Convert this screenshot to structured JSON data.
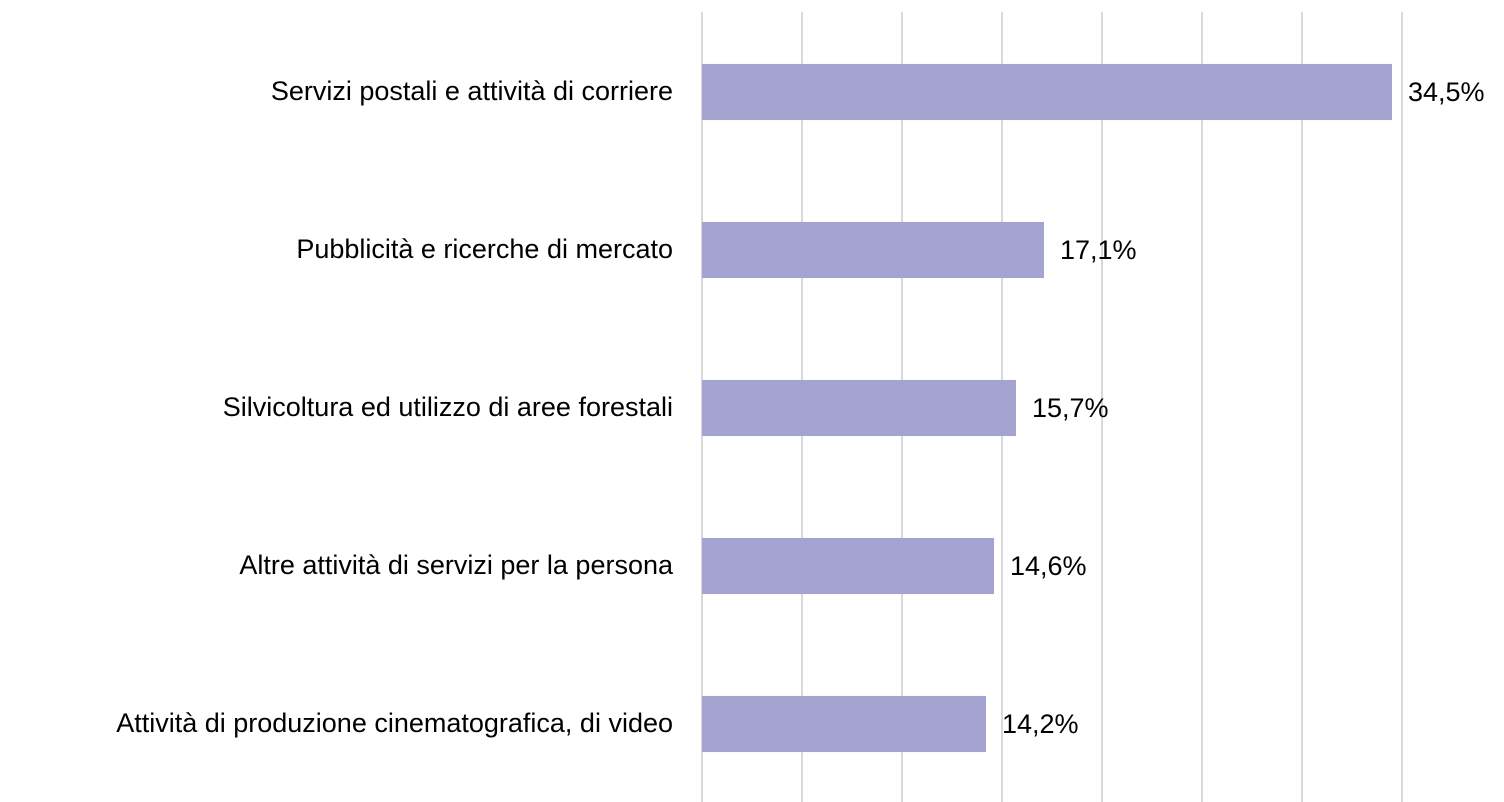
{
  "chart_data": {
    "type": "hbar",
    "categories": [
      "Servizi postali e attività di corriere",
      "Pubblicità e ricerche di mercato",
      "Silvicoltura ed utilizzo di aree forestali",
      "Altre attività di servizi per la persona",
      "Attività di produzione cinematografica, di video"
    ],
    "values": [
      34.5,
      17.1,
      15.7,
      14.6,
      14.2
    ],
    "value_labels": [
      "34,5%",
      "17,1%",
      "15,7%",
      "14,6%",
      "14,2%"
    ],
    "color": "#a5a3d0",
    "xlim": [
      0,
      35
    ],
    "xticks": [
      0,
      5,
      10,
      15,
      20,
      25,
      30,
      35
    ],
    "grid": true
  }
}
